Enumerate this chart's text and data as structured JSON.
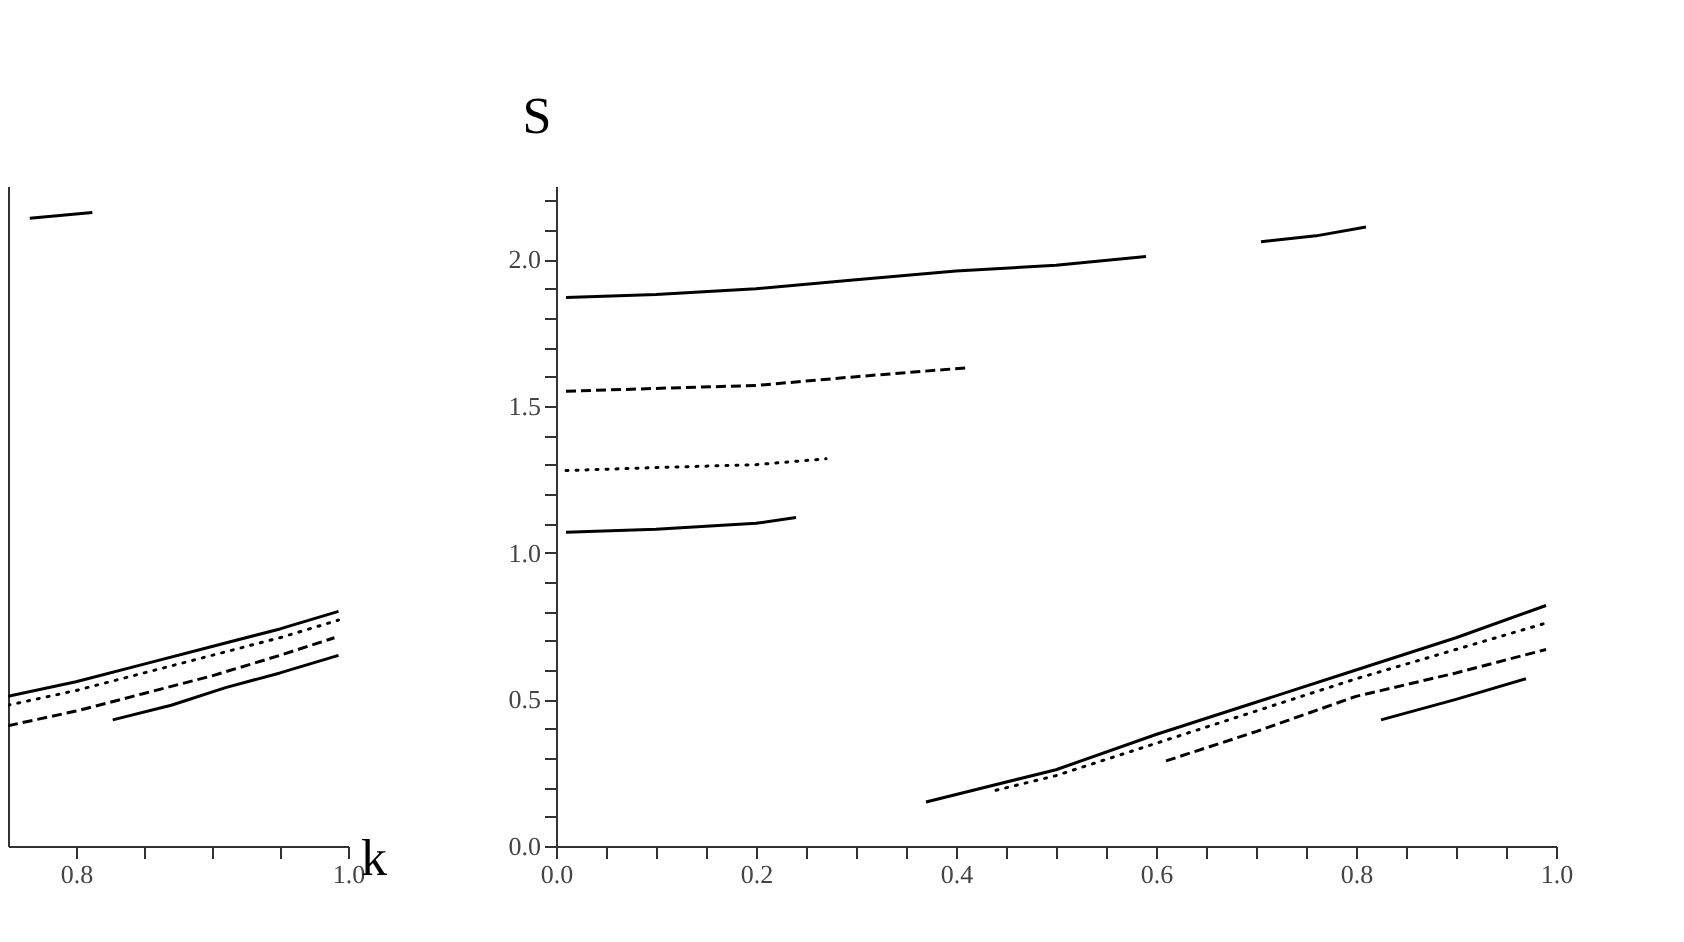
{
  "chart_data": [
    {
      "type": "line",
      "xlabel": "k",
      "tick_labels": "x",
      "grid": false,
      "xlim": [
        0.75,
        1.0
      ],
      "ylim": [
        0,
        2.25
      ],
      "xticks": [
        {
          "value": 0.8,
          "label": "0.8"
        },
        {
          "value": 0.85,
          "label": null
        },
        {
          "value": 0.9,
          "label": null
        },
        {
          "value": 0.95,
          "label": null
        },
        {
          "value": 1.0,
          "label": "1.0"
        }
      ],
      "series": [
        {
          "color": "#000000",
          "line_style": "solid",
          "x": [
            0.766,
            0.79,
            0.812
          ],
          "values": [
            2.14,
            2.15,
            2.16
          ]
        },
        {
          "color": "#000000",
          "line_style": "solid",
          "x": [
            0.75,
            0.8,
            0.85,
            0.9,
            0.95,
            0.993
          ],
          "values": [
            0.51,
            0.56,
            0.62,
            0.68,
            0.74,
            0.8
          ]
        },
        {
          "color": "#000000",
          "line_style": "dotted",
          "x": [
            0.75,
            0.8,
            0.85,
            0.9,
            0.95,
            0.993
          ],
          "values": [
            0.48,
            0.53,
            0.59,
            0.65,
            0.71,
            0.77
          ]
        },
        {
          "color": "#000000",
          "line_style": "dashed",
          "x": [
            0.75,
            0.8,
            0.85,
            0.9,
            0.95,
            0.99
          ],
          "values": [
            0.41,
            0.46,
            0.52,
            0.58,
            0.65,
            0.71
          ]
        },
        {
          "color": "#000000",
          "line_style": "solid",
          "x": [
            0.827,
            0.87,
            0.91,
            0.95,
            0.993
          ],
          "values": [
            0.43,
            0.48,
            0.54,
            0.59,
            0.65
          ]
        }
      ]
    },
    {
      "type": "line",
      "ylabel": "S",
      "grid": false,
      "xlim": [
        0,
        1.0
      ],
      "ylim": [
        0,
        2.25
      ],
      "xticks": [
        {
          "value": 0,
          "label": "0.0"
        },
        {
          "value": 0.05,
          "label": null
        },
        {
          "value": 0.1,
          "label": null
        },
        {
          "value": 0.15,
          "label": null
        },
        {
          "value": 0.2,
          "label": "0.2"
        },
        {
          "value": 0.25,
          "label": null
        },
        {
          "value": 0.3,
          "label": null
        },
        {
          "value": 0.35,
          "label": null
        },
        {
          "value": 0.4,
          "label": "0.4"
        },
        {
          "value": 0.45,
          "label": null
        },
        {
          "value": 0.5,
          "label": null
        },
        {
          "value": 0.55,
          "label": null
        },
        {
          "value": 0.6,
          "label": "0.6"
        },
        {
          "value": 0.65,
          "label": null
        },
        {
          "value": 0.7,
          "label": null
        },
        {
          "value": 0.75,
          "label": null
        },
        {
          "value": 0.8,
          "label": "0.8"
        },
        {
          "value": 0.85,
          "label": null
        },
        {
          "value": 0.9,
          "label": null
        },
        {
          "value": 0.95,
          "label": null
        },
        {
          "value": 1.0,
          "label": "1.0"
        }
      ],
      "yticks": [
        {
          "value": 0,
          "label": "0.0"
        },
        {
          "value": 0.1,
          "label": null
        },
        {
          "value": 0.2,
          "label": null
        },
        {
          "value": 0.3,
          "label": null
        },
        {
          "value": 0.4,
          "label": null
        },
        {
          "value": 0.5,
          "label": "0.5"
        },
        {
          "value": 0.6,
          "label": null
        },
        {
          "value": 0.7,
          "label": null
        },
        {
          "value": 0.8,
          "label": null
        },
        {
          "value": 0.9,
          "label": null
        },
        {
          "value": 1.0,
          "label": "1.0"
        },
        {
          "value": 1.1,
          "label": null
        },
        {
          "value": 1.2,
          "label": null
        },
        {
          "value": 1.3,
          "label": null
        },
        {
          "value": 1.4,
          "label": null
        },
        {
          "value": 1.5,
          "label": "1.5"
        },
        {
          "value": 1.6,
          "label": null
        },
        {
          "value": 1.7,
          "label": null
        },
        {
          "value": 1.8,
          "label": null
        },
        {
          "value": 1.9,
          "label": null
        },
        {
          "value": 2.0,
          "label": "2.0"
        },
        {
          "value": 2.1,
          "label": null
        },
        {
          "value": 2.2,
          "label": null
        }
      ],
      "series": [
        {
          "color": "#000000",
          "line_style": "solid",
          "x": [
            0.01,
            0.1,
            0.2,
            0.3,
            0.4,
            0.5,
            0.59
          ],
          "values": [
            1.87,
            1.88,
            1.9,
            1.93,
            1.96,
            1.98,
            2.01
          ]
        },
        {
          "color": "#000000",
          "line_style": "solid",
          "x": [
            0.705,
            0.76,
            0.81
          ],
          "values": [
            2.06,
            2.08,
            2.11
          ]
        },
        {
          "color": "#000000",
          "line_style": "solid",
          "x": [
            0.825,
            0.9,
            0.97
          ],
          "values": [
            0.43,
            0.5,
            0.57
          ]
        },
        {
          "color": "#000000",
          "line_style": "dashed",
          "x": [
            0.01,
            0.1,
            0.2,
            0.3,
            0.41
          ],
          "values": [
            1.55,
            1.56,
            1.57,
            1.6,
            1.63
          ]
        },
        {
          "color": "#000000",
          "line_style": "dashed",
          "x": [
            0.61,
            0.7,
            0.8,
            0.9,
            0.99
          ],
          "values": [
            0.29,
            0.39,
            0.51,
            0.59,
            0.67
          ]
        },
        {
          "color": "#000000",
          "line_style": "dotted",
          "x": [
            0.01,
            0.1,
            0.2,
            0.27
          ],
          "values": [
            1.28,
            1.29,
            1.3,
            1.32
          ]
        },
        {
          "color": "#000000",
          "line_style": "dotted",
          "x": [
            0.44,
            0.5,
            0.6,
            0.7,
            0.8,
            0.9,
            0.99
          ],
          "values": [
            0.19,
            0.24,
            0.35,
            0.46,
            0.57,
            0.67,
            0.76
          ]
        },
        {
          "color": "#000000",
          "line_style": "solid",
          "x": [
            0.01,
            0.1,
            0.2,
            0.24
          ],
          "values": [
            1.07,
            1.08,
            1.1,
            1.12
          ]
        },
        {
          "color": "#000000",
          "line_style": "solid",
          "x": [
            0.37,
            0.5,
            0.6,
            0.7,
            0.8,
            0.9,
            0.99
          ],
          "values": [
            0.15,
            0.26,
            0.38,
            0.49,
            0.6,
            0.71,
            0.82
          ]
        }
      ]
    }
  ]
}
